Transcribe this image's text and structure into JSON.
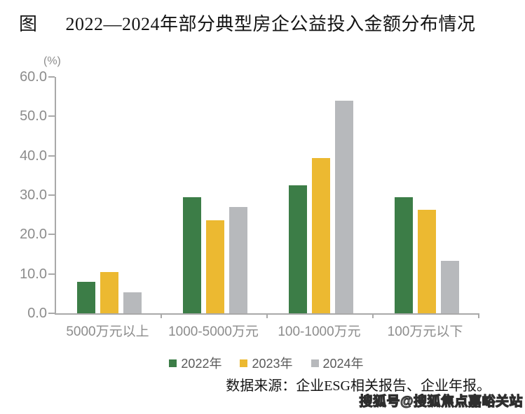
{
  "title": {
    "prefix": "图",
    "text": "2022—2024年部分典型房企公益投入金额分布情况"
  },
  "chart_data": {
    "type": "bar",
    "unit_label": "(%)",
    "categories": [
      "5000万元以上",
      "1000-5000万元",
      "100-1000万元",
      "100万元以下"
    ],
    "series": [
      {
        "name": "2022年",
        "color": "#3c7d47",
        "values": [
          8.0,
          29.5,
          32.4,
          29.5
        ]
      },
      {
        "name": "2023年",
        "color": "#ecb931",
        "values": [
          10.4,
          23.7,
          39.4,
          26.2
        ]
      },
      {
        "name": "2024年",
        "color": "#b7b9bc",
        "values": [
          5.4,
          27.0,
          54.0,
          13.4
        ]
      }
    ],
    "ylim": [
      0,
      60
    ],
    "ytick_step": 10,
    "ytick_labels": [
      "0.0",
      "10.0",
      "20.0",
      "30.0",
      "40.0",
      "50.0",
      "60.0"
    ],
    "grid": false,
    "legend_position": "bottom"
  },
  "source_note": "数据来源：企业ESG相关报告、企业年报。",
  "watermark": "搜狐号@搜狐焦点嘉峪关站",
  "colors": {
    "axis": "#a9a9a9",
    "tick_label": "#8c8c8c",
    "legend_text": "#595959",
    "title_text": "#141414"
  }
}
